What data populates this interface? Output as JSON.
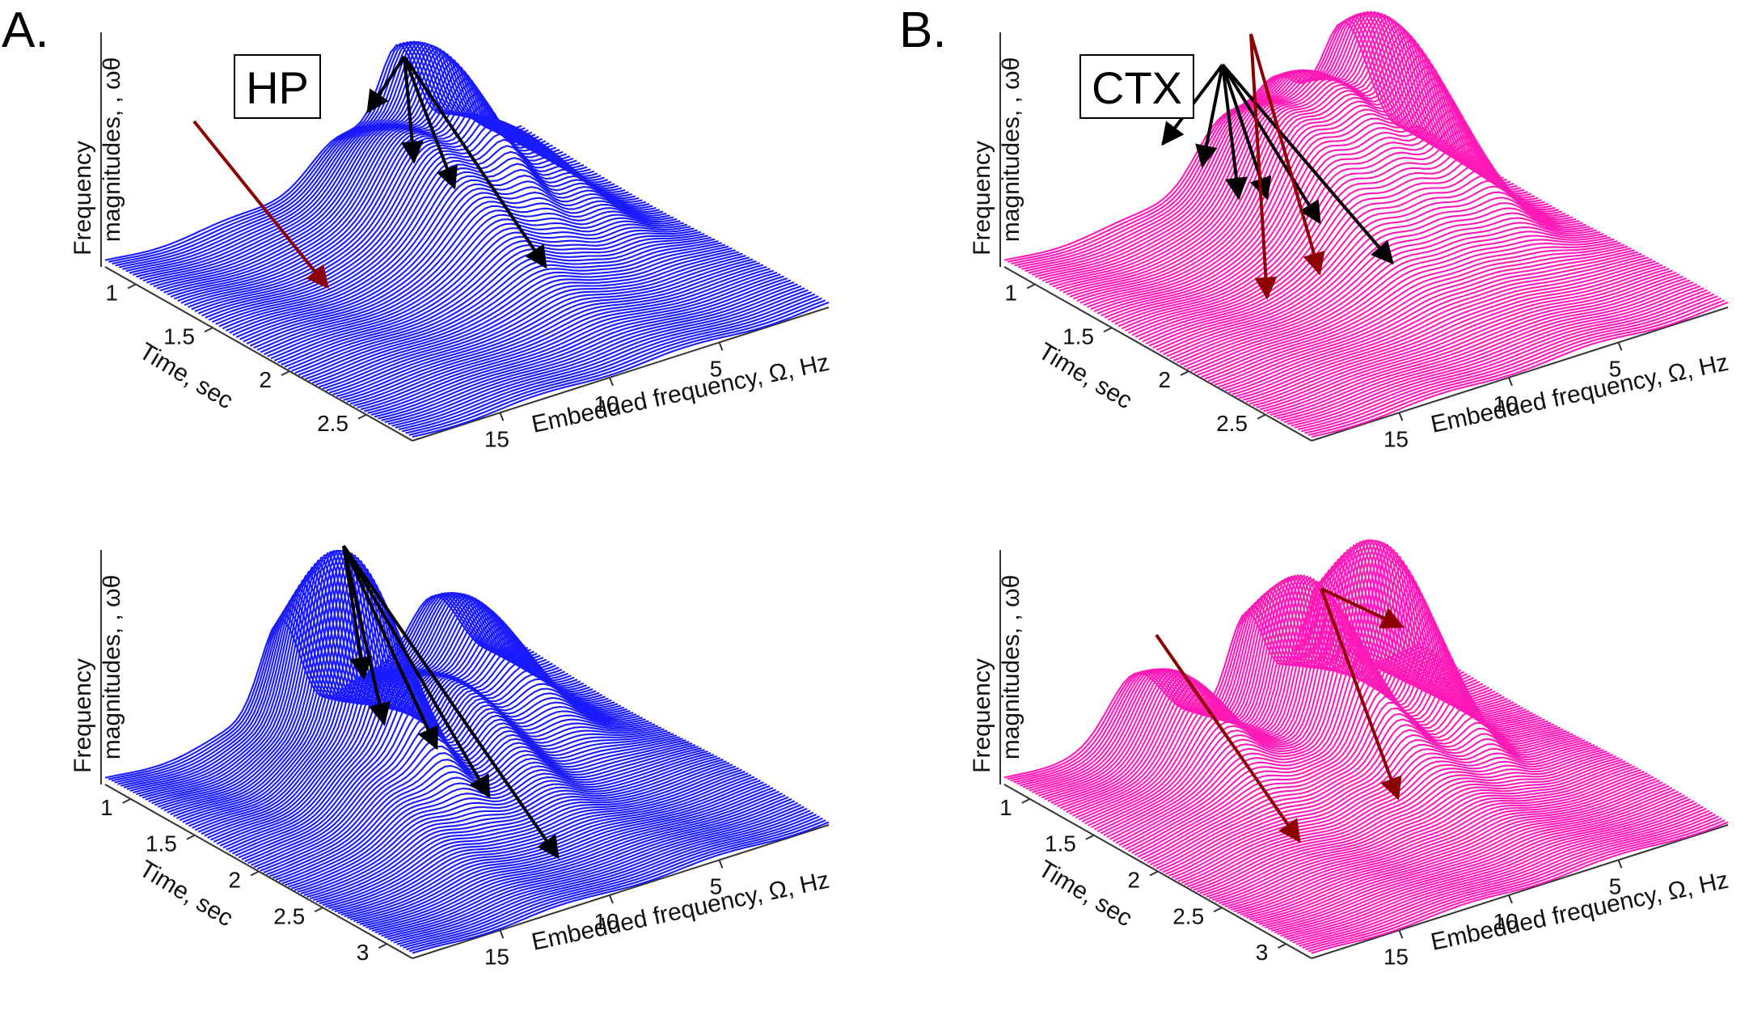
{
  "figure": {
    "panel_labels": [
      "A.",
      "B."
    ],
    "region_labels": [
      "HP",
      "CTX"
    ],
    "colors": {
      "hp": "#1a1aff",
      "ctx": "#ff1ab8",
      "arrow_dark_red": "#8b0000",
      "arrow_black": "#000000"
    }
  },
  "chart_data": [
    {
      "type": "waterfall3d",
      "panel": "A",
      "region": "HP",
      "row": "top",
      "xlabel": "Embedded frequency, Ω, Hz",
      "ylabel": "Time, sec",
      "zlabel_line1": "Frequency",
      "zlabel_line2": "magnitudes, , ωθ",
      "x_ticks": [
        "5",
        "10",
        "15"
      ],
      "x_tick_values": [
        5,
        10,
        15
      ],
      "xlim": [
        0,
        19
      ],
      "y_ticks": [
        "1",
        "1.5",
        "2",
        "2.5"
      ],
      "y_tick_values": [
        1,
        1.5,
        2,
        2.5
      ],
      "ylim": [
        0.8,
        2.8
      ],
      "color": "#1a1aff",
      "n_lines": 90,
      "peaks": [
        {
          "freq": 5.6,
          "time": 1.05,
          "amp": 160,
          "width": 0.9
        },
        {
          "freq": 8.5,
          "time": 1.3,
          "amp": 95,
          "width": 1.4
        },
        {
          "freq": 3.0,
          "time": 1.2,
          "amp": 70,
          "width": 1.0
        }
      ],
      "arrows_black": 4,
      "arrows_red": 1
    },
    {
      "type": "waterfall3d",
      "panel": "B",
      "region": "CTX",
      "row": "top",
      "xlabel": "Embedded frequency, Ω, Hz",
      "ylabel": "Time, sec",
      "zlabel_line1": "Frequency",
      "zlabel_line2": "magnitudes, , ωθ",
      "x_ticks": [
        "5",
        "10",
        "15"
      ],
      "x_tick_values": [
        5,
        10,
        15
      ],
      "xlim": [
        0,
        19
      ],
      "y_ticks": [
        "1",
        "1.5",
        "2",
        "2.5"
      ],
      "y_tick_values": [
        1,
        1.5,
        2,
        2.5
      ],
      "ylim": [
        0.8,
        2.8
      ],
      "color": "#ff1ab8",
      "n_lines": 90,
      "peaks": [
        {
          "freq": 3.5,
          "time": 1.1,
          "amp": 200,
          "width": 1.1
        },
        {
          "freq": 9.0,
          "time": 1.2,
          "amp": 130,
          "width": 1.3
        },
        {
          "freq": 6.5,
          "time": 1.1,
          "amp": 110,
          "width": 1.0
        }
      ],
      "arrows_black": 6,
      "arrows_red": 2
    },
    {
      "type": "waterfall3d",
      "panel": "A",
      "region": "HP",
      "row": "bottom",
      "xlabel": "Embedded frequency, Ω, Hz",
      "ylabel": "Time, sec",
      "zlabel_line1": "Frequency",
      "zlabel_line2": "magnitudes, , ωθ",
      "x_ticks": [
        "5",
        "10",
        "15"
      ],
      "x_tick_values": [
        5,
        10,
        15
      ],
      "xlim": [
        0,
        19
      ],
      "y_ticks": [
        "1",
        "1.5",
        "2",
        "2.5",
        "3"
      ],
      "y_tick_values": [
        1,
        1.5,
        2,
        2.5,
        3
      ],
      "ylim": [
        0.8,
        3.2
      ],
      "color": "#1a1aff",
      "n_lines": 100,
      "peaks": [
        {
          "freq": 11.0,
          "time": 1.35,
          "amp": 270,
          "width": 0.9
        },
        {
          "freq": 4.0,
          "time": 1.1,
          "amp": 120,
          "width": 1.2
        },
        {
          "freq": 7.5,
          "time": 1.6,
          "amp": 90,
          "width": 1.0
        }
      ],
      "arrows_black": 5,
      "arrows_red": 0
    },
    {
      "type": "waterfall3d",
      "panel": "B",
      "region": "CTX",
      "row": "bottom",
      "xlabel": "Embedded frequency, Ω, Hz",
      "ylabel": "Time, sec",
      "zlabel_line1": "Frequency",
      "zlabel_line2": "magnitudes, , ωθ",
      "x_ticks": [
        "5",
        "10",
        "15"
      ],
      "x_tick_values": [
        5,
        10,
        15
      ],
      "xlim": [
        0,
        19
      ],
      "y_ticks": [
        "1",
        "1.5",
        "2",
        "2.5",
        "3"
      ],
      "y_tick_values": [
        1,
        1.5,
        2,
        2.5,
        3
      ],
      "ylim": [
        0.8,
        3.2
      ],
      "color": "#ff1ab8",
      "n_lines": 100,
      "peaks": [
        {
          "freq": 4.5,
          "time": 1.3,
          "amp": 220,
          "width": 0.8
        },
        {
          "freq": 8.0,
          "time": 1.3,
          "amp": 200,
          "width": 0.8
        },
        {
          "freq": 13.0,
          "time": 1.2,
          "amp": 110,
          "width": 1.2
        }
      ],
      "arrows_black": 0,
      "arrows_red": 3
    }
  ]
}
